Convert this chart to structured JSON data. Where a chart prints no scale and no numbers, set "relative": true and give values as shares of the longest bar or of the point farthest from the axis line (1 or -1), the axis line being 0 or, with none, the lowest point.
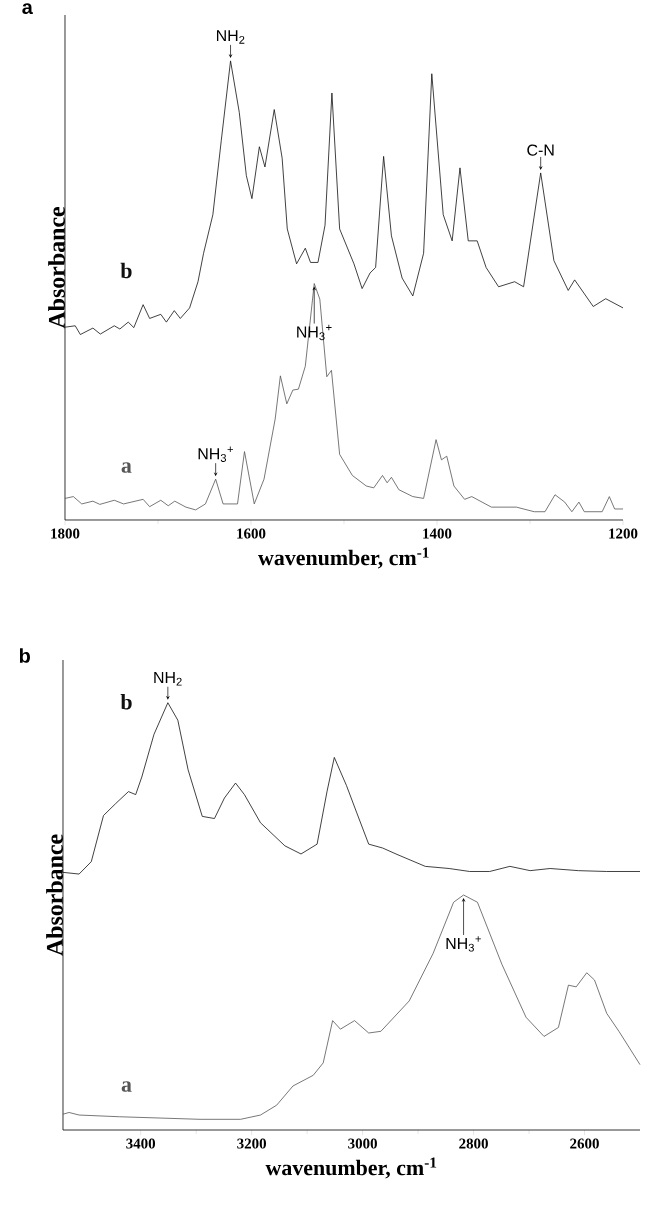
{
  "chart_data": [
    {
      "type": "line",
      "title": "a",
      "xlabel": "wavenumber, cm$^{-1}$",
      "ylabel": "Absorbance",
      "relative": true,
      "xlim": [
        1800,
        1200
      ],
      "xticks": [
        1800,
        1600,
        1400,
        1200
      ],
      "x": [
        1800,
        1789,
        1783.5,
        1770,
        1762,
        1747,
        1741,
        1732,
        1726,
        1716,
        1709,
        1697,
        1691,
        1682.5,
        1676,
        1666,
        1657,
        1651,
        1641,
        1632,
        1622,
        1612.6,
        1605,
        1599,
        1591,
        1585,
        1575,
        1566.5,
        1561,
        1551,
        1541.6,
        1536,
        1528,
        1520.4,
        1513,
        1504.7,
        1489.3,
        1480.5,
        1472,
        1466,
        1457.4,
        1449,
        1437.5,
        1426,
        1414.4,
        1405.6,
        1393.3,
        1383.7,
        1375.3,
        1366.4,
        1356.8,
        1347.2,
        1333.8,
        1316.5,
        1306.9,
        1288.5,
        1274.3,
        1258.9,
        1252,
        1232,
        1218.6,
        1200
      ],
      "series": [
        {
          "name": "b",
          "color": "#111111",
          "values": [
            0.42,
            0.423,
            0.404,
            0.418,
            0.405,
            0.423,
            0.416,
            0.431,
            0.419,
            0.469,
            0.439,
            0.448,
            0.431,
            0.456,
            0.439,
            0.462,
            0.519,
            0.581,
            0.665,
            0.826,
            1,
            0.888,
            0.75,
            0.7,
            0.813,
            0.769,
            0.894,
            0.788,
            0.634,
            0.558,
            0.592,
            0.561,
            0.561,
            0.642,
            0.93,
            0.634,
            0.558,
            0.504,
            0.538,
            0.55,
            0.792,
            0.619,
            0.527,
            0.488,
            0.581,
            0.972,
            0.665,
            0.608,
            0.767,
            0.608,
            0.608,
            0.55,
            0.508,
            0.519,
            0.508,
            0.756,
            0.565,
            0.5,
            0.523,
            0.465,
            0.482,
            0.462
          ]
        },
        {
          "name": "a",
          "color": "#555555",
          "x": [
            1800,
            1791,
            1782,
            1770,
            1762.5,
            1747,
            1737,
            1716,
            1709,
            1697,
            1689,
            1682,
            1670,
            1659.5,
            1649,
            1638,
            1630,
            1614.5,
            1607,
            1596.5,
            1586,
            1574,
            1568.4,
            1561.5,
            1555,
            1549,
            1541.6,
            1532,
            1526,
            1518.5,
            1513.5,
            1504.7,
            1491,
            1476,
            1468,
            1458.6,
            1453.6,
            1449,
            1441,
            1426,
            1414.4,
            1401,
            1395.2,
            1389.5,
            1381.8,
            1370.3,
            1362.6,
            1341.5,
            1314.6,
            1295.4,
            1283.9,
            1273.1,
            1262.7,
            1255,
            1247.4,
            1241.6,
            1222.4,
            1214.7,
            1209,
            1200
          ],
          "values": [
            0.047,
            0.051,
            0.035,
            0.041,
            0.034,
            0.043,
            0.035,
            0.045,
            0.029,
            0.043,
            0.031,
            0.041,
            0.028,
            0.022,
            0.035,
            0.089,
            0.035,
            0.035,
            0.149,
            0.035,
            0.089,
            0.22,
            0.314,
            0.253,
            0.283,
            0.285,
            0.335,
            0.515,
            0.481,
            0.312,
            0.326,
            0.143,
            0.097,
            0.074,
            0.07,
            0.097,
            0.081,
            0.093,
            0.066,
            0.051,
            0.047,
            0.175,
            0.131,
            0.139,
            0.074,
            0.045,
            0.051,
            0.028,
            0.028,
            0.018,
            0.018,
            0.055,
            0.039,
            0.018,
            0.039,
            0.018,
            0.018,
            0.051,
            0.024,
            0.024
          ]
        }
      ],
      "annotations": [
        {
          "text": "NH$_{2}$",
          "x": 1622,
          "y": 1
        },
        {
          "text": "NH$_{3}$$^{+}$",
          "x": 1532,
          "y": 0.515
        },
        {
          "text": "NH$_{3}$$^{+}$",
          "x": 1638,
          "y": 0.089
        },
        {
          "text": "C-N",
          "x": 1288.5,
          "y": 0.756
        }
      ]
    },
    {
      "type": "line",
      "title": "b",
      "xlabel": "wavenumber, cm$^{-1}$",
      "ylabel": "Absorbance",
      "relative": true,
      "xlim": [
        3540,
        2500
      ],
      "xticks": [
        3400,
        3200,
        3000,
        2800,
        2600
      ],
      "x": [
        3540,
        3511,
        3489,
        3467,
        3445,
        3422,
        3409,
        3398,
        3376,
        3351,
        3333,
        3314.5,
        3289,
        3267,
        3249,
        3229,
        3213,
        3184,
        3140,
        3111,
        3082,
        3064,
        3051,
        3029,
        3011,
        2989,
        2964,
        2938,
        2887,
        2844,
        2807,
        2771,
        2734.5,
        2698,
        2662,
        2611,
        2560,
        2500
      ],
      "series": [
        {
          "name": "b",
          "color": "#111111",
          "values": [
            0.603,
            0.599,
            0.628,
            0.736,
            0.764,
            0.792,
            0.785,
            0.826,
            0.926,
            1,
            0.959,
            0.843,
            0.734,
            0.729,
            0.777,
            0.812,
            0.785,
            0.719,
            0.665,
            0.646,
            0.669,
            0.793,
            0.872,
            0.806,
            0.744,
            0.669,
            0.66,
            0.645,
            0.617,
            0.612,
            0.605,
            0.605,
            0.617,
            0.607,
            0.612,
            0.607,
            0.605,
            0.605
          ]
        },
        {
          "name": "a",
          "color": "#555555",
          "x": [
            3540,
            3529,
            3511,
            3438,
            3365,
            3293,
            3220,
            3184,
            3155,
            3125.5,
            3089,
            3071,
            3054,
            3040,
            3014.5,
            2989,
            2967,
            2916,
            2873,
            2836,
            2818,
            2793,
            2749,
            2705.5,
            2673,
            2647,
            2629,
            2615,
            2596,
            2582,
            2560,
            2538,
            2500
          ],
          "values": [
            0.037,
            0.041,
            0.035,
            0.031,
            0.028,
            0.025,
            0.025,
            0.035,
            0.058,
            0.103,
            0.128,
            0.157,
            0.256,
            0.236,
            0.256,
            0.227,
            0.231,
            0.302,
            0.413,
            0.533,
            0.55,
            0.533,
            0.388,
            0.264,
            0.219,
            0.24,
            0.339,
            0.335,
            0.368,
            0.351,
            0.273,
            0.231,
            0.153
          ]
        }
      ],
      "annotations": [
        {
          "text": "NH$_{2}$",
          "x": 3351,
          "y": 1
        },
        {
          "text": "NH$_{3}$$^{+}$",
          "x": 2818,
          "y": 0.55
        }
      ]
    }
  ]
}
